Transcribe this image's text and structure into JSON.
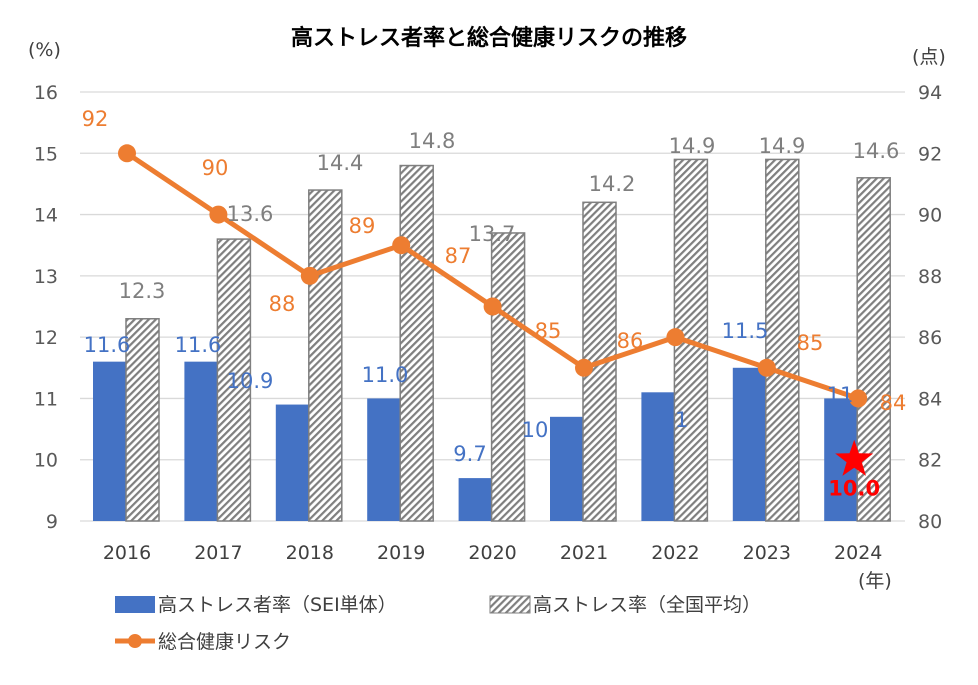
{
  "chart_data": {
    "type": "bar+line",
    "title": "高ストレス者率と総合健康リスクの推移",
    "ylabel_left": "(%)",
    "ylabel_right": "(点)",
    "xlabel": "(年)",
    "categories": [
      "2016",
      "2017",
      "2018",
      "2019",
      "2020",
      "2021",
      "2022",
      "2023",
      "2024"
    ],
    "ylim_left": [
      9,
      16
    ],
    "yticks_left": [
      9,
      10,
      11,
      12,
      13,
      14,
      15,
      16
    ],
    "ylim_right": [
      80,
      94
    ],
    "yticks_right": [
      80,
      82,
      84,
      86,
      88,
      90,
      92,
      94
    ],
    "grid": true,
    "legend_placement": "bottom",
    "series": [
      {
        "name": "高ストレス者率（SEI単体）",
        "type": "bar",
        "axis": "left",
        "color": "#4472C4",
        "values": [
          11.6,
          11.6,
          10.9,
          11.0,
          9.7,
          10.7,
          11.1,
          11.5,
          11.0
        ],
        "labels": [
          "11.6",
          "11.6",
          "10.9",
          "11.0",
          "9.7",
          "10.7",
          "11.1",
          "11.5",
          "11"
        ]
      },
      {
        "name": "高ストレス率（全国平均）",
        "type": "bar",
        "axis": "left",
        "pattern": "hatched",
        "color": "#7F7F7F",
        "values": [
          12.3,
          13.6,
          14.4,
          14.8,
          13.7,
          14.2,
          14.9,
          14.9,
          14.6
        ],
        "labels": [
          "12.3",
          "13.6",
          "14.4",
          "14.8",
          "13.7",
          "14.2",
          "14.9",
          "14.9",
          "14.6"
        ]
      },
      {
        "name": "総合健康リスク",
        "type": "line",
        "axis": "right",
        "color": "#ED7D31",
        "values": [
          92,
          90,
          88,
          89,
          87,
          85,
          86,
          85,
          84
        ],
        "labels": [
          "92",
          "90",
          "88",
          "89",
          "87",
          "85",
          "86",
          "85",
          "84"
        ]
      }
    ],
    "annotation": {
      "label": "10.0",
      "value": 10.0,
      "category": "2024",
      "marker": "star",
      "color": "#FF0000"
    }
  }
}
